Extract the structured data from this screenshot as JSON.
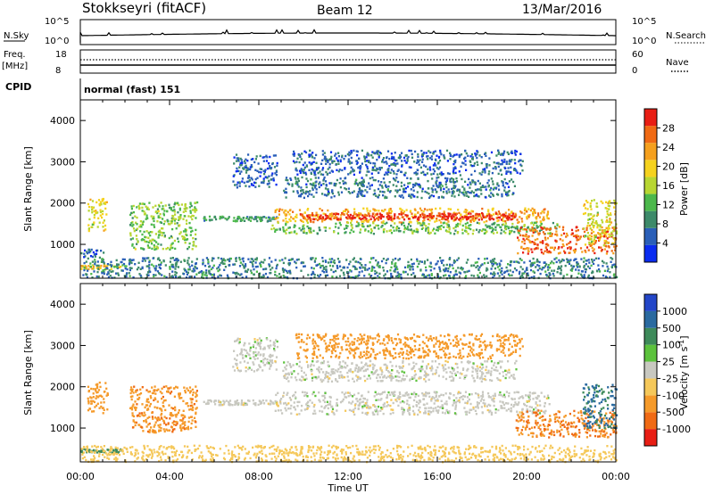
{
  "header": {
    "station": "Stokkseyri (fitACF)",
    "beam": "Beam 12",
    "date": "13/Mar/2016"
  },
  "top_panels": {
    "nsky_label": "N.Sky",
    "nsky_ticks": [
      "10^5",
      "10^0"
    ],
    "nsearch_label": "N.Search",
    "nsearch_ticks": [
      "10^5",
      "10^0"
    ],
    "freq_label": "Freq.",
    "freq_unit": "[MHz]",
    "freq_ticks": [
      "18",
      "8"
    ],
    "nave_label": "Nave",
    "nave_ticks": [
      "60",
      "0"
    ],
    "cpid_label": "CPID",
    "cpid_value": "normal (fast) 151"
  },
  "chart_data": [
    {
      "type": "heatmap",
      "name": "power",
      "ylabel": "Slant Range [km]",
      "xlabel": "Time UT",
      "x_ticks": [
        "00:00",
        "04:00",
        "08:00",
        "12:00",
        "16:00",
        "20:00",
        "00:00"
      ],
      "xlim_hours": [
        0,
        24
      ],
      "ylim": [
        180,
        4500
      ],
      "y_ticks": [
        1000,
        2000,
        3000,
        4000
      ],
      "colorbar": {
        "label": "Power [dB]",
        "range": [
          0,
          32
        ],
        "ticks": [
          4,
          8,
          12,
          16,
          20,
          24,
          28
        ],
        "colors": [
          "#0a2cf0",
          "#2a5fb8",
          "#3d8a6a",
          "#4cb84c",
          "#b8d632",
          "#f5d21e",
          "#f5a01e",
          "#f06a14",
          "#e81e14"
        ]
      },
      "regions": [
        {
          "t": [
            0.3,
            1.2
          ],
          "r": [
            1350,
            2150
          ],
          "level": 18
        },
        {
          "t": [
            0.0,
            1.8
          ],
          "r": [
            420,
            520
          ],
          "level": 20
        },
        {
          "t": [
            0.0,
            1.0
          ],
          "r": [
            700,
            900
          ],
          "level": 6
        },
        {
          "t": [
            2.2,
            5.2
          ],
          "r": [
            900,
            2050
          ],
          "level": 14
        },
        {
          "t": [
            5.5,
            8.8
          ],
          "r": [
            1580,
            1700
          ],
          "level": 10
        },
        {
          "t": [
            6.8,
            8.8
          ],
          "r": [
            2400,
            3200
          ],
          "level": 6
        },
        {
          "t": [
            8.7,
            21.0
          ],
          "r": [
            1550,
            1900
          ],
          "level": 22
        },
        {
          "t": [
            9.8,
            19.5
          ],
          "r": [
            1620,
            1780
          ],
          "level": 30
        },
        {
          "t": [
            8.5,
            21.5
          ],
          "r": [
            1280,
            1550
          ],
          "level": 13
        },
        {
          "t": [
            9.0,
            19.5
          ],
          "r": [
            2150,
            2650
          ],
          "level": 7
        },
        {
          "t": [
            9.5,
            19.8
          ],
          "r": [
            2700,
            3300
          ],
          "level": 6
        },
        {
          "t": [
            19.5,
            24.0
          ],
          "r": [
            800,
            1450
          ],
          "level": 26
        },
        {
          "t": [
            22.5,
            24.0
          ],
          "r": [
            1000,
            2100
          ],
          "level": 18
        },
        {
          "t": [
            0.0,
            24.0
          ],
          "r": [
            200,
            700
          ],
          "level": 8
        }
      ]
    },
    {
      "type": "heatmap",
      "name": "velocity",
      "ylabel": "Slant Range [km]",
      "xlabel": "Time UT",
      "x_ticks": [
        "00:00",
        "04:00",
        "08:00",
        "12:00",
        "16:00",
        "20:00",
        "00:00"
      ],
      "xlim_hours": [
        0,
        24
      ],
      "ylim": [
        180,
        4500
      ],
      "y_ticks": [
        1000,
        2000,
        3000,
        4000
      ],
      "colorbar": {
        "label": "Velocity [m s",
        "label_sup": "-1",
        "label_end": "]",
        "tick_labels": [
          "1000",
          "500",
          "100",
          "25",
          "-25",
          "-100",
          "-500",
          "-1000"
        ],
        "colors": [
          "#2346c8",
          "#2a6aa0",
          "#3e8a5a",
          "#5cc23c",
          "#c8c8c0",
          "#f5c85a",
          "#f59a2a",
          "#f06a14",
          "#e81e14"
        ]
      },
      "regions": [
        {
          "t": [
            0.3,
            1.2
          ],
          "r": [
            1350,
            2150
          ],
          "v": -300
        },
        {
          "t": [
            0.0,
            1.8
          ],
          "r": [
            420,
            520
          ],
          "v": 150
        },
        {
          "t": [
            2.2,
            5.2
          ],
          "r": [
            900,
            2050
          ],
          "v": -400
        },
        {
          "t": [
            5.5,
            8.8
          ],
          "r": [
            1580,
            1700
          ],
          "v": 0
        },
        {
          "t": [
            6.8,
            8.8
          ],
          "r": [
            2400,
            3200
          ],
          "v": 0
        },
        {
          "t": [
            8.7,
            21.0
          ],
          "r": [
            1350,
            1900
          ],
          "v": 0
        },
        {
          "t": [
            9.0,
            19.5
          ],
          "r": [
            2150,
            2650
          ],
          "v": 0
        },
        {
          "t": [
            9.5,
            19.8
          ],
          "r": [
            2700,
            3300
          ],
          "v": -300
        },
        {
          "t": [
            19.5,
            24.0
          ],
          "r": [
            800,
            1450
          ],
          "v": -500
        },
        {
          "t": [
            22.5,
            24.0
          ],
          "r": [
            1000,
            2100
          ],
          "v": 600
        },
        {
          "t": [
            0.0,
            24.0
          ],
          "r": [
            200,
            600
          ],
          "v": -60
        }
      ]
    }
  ]
}
